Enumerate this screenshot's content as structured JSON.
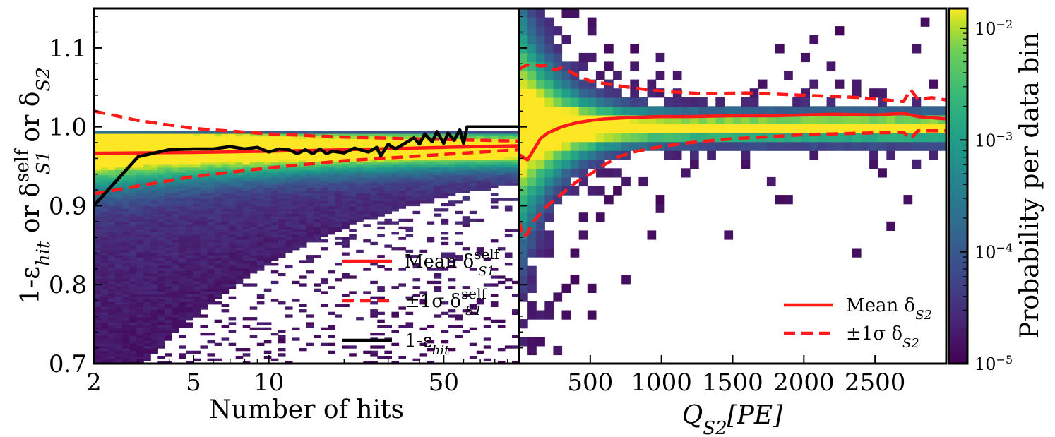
{
  "chart_data": [
    {
      "type": "heatmap",
      "title": "",
      "xlabel": "Number of hits",
      "ylabel": "1-ε_hit or δ_S1^self or δ_S2",
      "x_scale": "log",
      "xlim": [
        2,
        100
      ],
      "ylim": [
        0.7,
        1.15
      ],
      "x_ticks": [
        2,
        5,
        10,
        50
      ],
      "x_tick_labels": [
        "2",
        "5",
        "10",
        "50"
      ],
      "y_ticks": [
        0.7,
        0.8,
        0.9,
        1.0,
        1.1
      ],
      "y_tick_labels": [
        "0.7",
        "0.8",
        "0.9",
        "1.0",
        "1.1"
      ],
      "series": [
        {
          "name": "Mean δ_S1^self",
          "style": "solid",
          "color": "#ff1a1a",
          "x": [
            2,
            5,
            10,
            20,
            50,
            100
          ],
          "y": [
            0.9665,
            0.9675,
            0.969,
            0.971,
            0.974,
            0.976
          ]
        },
        {
          "name": "+1σ δ_S1^self",
          "style": "dashed",
          "color": "#ff1a1a",
          "x": [
            2,
            3,
            5,
            10,
            20,
            50,
            100
          ],
          "y": [
            1.02,
            1.008,
            0.998,
            0.991,
            0.987,
            0.984,
            0.982
          ]
        },
        {
          "name": "-1σ δ_S1^self",
          "style": "dashed",
          "color": "#ff1a1a",
          "x": [
            2,
            3,
            5,
            10,
            20,
            50,
            100
          ],
          "y": [
            0.915,
            0.925,
            0.937,
            0.948,
            0.957,
            0.965,
            0.971
          ]
        },
        {
          "name": "1-ε_hit",
          "style": "solid",
          "color": "#000000",
          "x": [
            2,
            3,
            4,
            5,
            6,
            7,
            8,
            9,
            10,
            11,
            12,
            13,
            14,
            15,
            16,
            17,
            18,
            20,
            22,
            25,
            27,
            28,
            30,
            32,
            35,
            38,
            40,
            42,
            45,
            47,
            50,
            52,
            55,
            58,
            60,
            62,
            65,
            100
          ],
          "y": [
            0.9,
            0.962,
            0.971,
            0.972,
            0.972,
            0.975,
            0.972,
            0.974,
            0.968,
            0.972,
            0.971,
            0.966,
            0.971,
            0.966,
            0.972,
            0.966,
            0.969,
            0.967,
            0.973,
            0.968,
            0.974,
            0.963,
            0.978,
            0.972,
            0.979,
            0.986,
            0.978,
            0.991,
            0.981,
            0.994,
            0.979,
            0.992,
            0.983,
            0.996,
            0.979,
            1.0,
            1.0,
            1.0
          ]
        }
      ],
      "legend": {
        "position": "lower-right",
        "entries": [
          {
            "label_main": "Mean δ",
            "label_sub": "S1",
            "label_sup": "self",
            "style": "solid",
            "color": "#ff1a1a"
          },
          {
            "label_main": "±1σ δ",
            "label_sub": "S1",
            "label_sup": "self",
            "style": "dashed",
            "color": "#ff1a1a"
          },
          {
            "label_main": "1-ε",
            "label_sub": "hit",
            "label_sup": "",
            "style": "solid",
            "color": "#000000"
          }
        ]
      },
      "heatmap_description": "2D histogram of δ_S1^self vs number of hits, density concentrated near 0.97, spreading downward at low hit counts"
    },
    {
      "type": "heatmap",
      "title": "",
      "xlabel": "Q_S2[PE]",
      "ylabel": "",
      "x_scale": "linear",
      "xlim": [
        0,
        3000
      ],
      "ylim": [
        0.7,
        1.15
      ],
      "x_ticks": [
        500,
        1000,
        1500,
        2000,
        2500
      ],
      "x_tick_labels": [
        "500",
        "1000",
        "1500",
        "2000",
        "2500"
      ],
      "series": [
        {
          "name": "Mean δ_S2",
          "style": "solid",
          "color": "#ff1a1a",
          "x": [
            0,
            60,
            100,
            150,
            200,
            300,
            400,
            500,
            600,
            800,
            1000,
            1200,
            1500,
            1800,
            2000,
            2200,
            2500,
            2700,
            2800,
            3000
          ],
          "y": [
            0.965,
            0.958,
            0.97,
            0.985,
            0.992,
            1.0,
            1.005,
            1.008,
            1.01,
            1.012,
            1.013,
            1.013,
            1.014,
            1.014,
            1.015,
            1.016,
            1.015,
            1.017,
            1.013,
            1.01
          ]
        },
        {
          "name": "+1σ δ_S2",
          "style": "dashed",
          "color": "#ff1a1a",
          "x": [
            0,
            50,
            100,
            150,
            200,
            250,
            300,
            400,
            500,
            700,
            900,
            1100,
            1300,
            1600,
            2000,
            2400,
            2700,
            2750,
            2800,
            2900,
            3000
          ],
          "y": [
            1.073,
            1.078,
            1.079,
            1.077,
            1.078,
            1.072,
            1.075,
            1.066,
            1.058,
            1.052,
            1.047,
            1.044,
            1.042,
            1.043,
            1.04,
            1.037,
            1.032,
            1.047,
            1.035,
            1.037,
            1.034
          ]
        },
        {
          "name": "-1σ δ_S2",
          "style": "dashed",
          "color": "#ff1a1a",
          "x": [
            0,
            30,
            60,
            100,
            150,
            200,
            300,
            400,
            500,
            600,
            700,
            800,
            1000,
            1200,
            1500,
            1800,
            2000,
            2400,
            2700,
            2750,
            2800,
            3000
          ],
          "y": [
            0.88,
            0.86,
            0.865,
            0.88,
            0.89,
            0.9,
            0.915,
            0.93,
            0.94,
            0.952,
            0.962,
            0.968,
            0.975,
            0.98,
            0.985,
            0.988,
            0.99,
            0.992,
            0.993,
            0.985,
            0.995,
            0.995
          ]
        }
      ],
      "legend": {
        "position": "lower-right",
        "entries": [
          {
            "label_main": "Mean δ",
            "label_sub": "S2",
            "label_sup": "",
            "style": "solid",
            "color": "#ff1a1a"
          },
          {
            "label_main": "±1σ δ",
            "label_sub": "S2",
            "label_sup": "",
            "style": "dashed",
            "color": "#ff1a1a"
          }
        ]
      },
      "heatmap_description": "2D histogram of δ_S2 vs Q_S2, density concentrated at 0.98-1.02, sparse bins at low charge spreading"
    }
  ],
  "colorbar": {
    "label": "Probability per data bin",
    "scale": "log",
    "range": [
      1e-05,
      0.015
    ],
    "ticks": [
      {
        "value": 1e-05,
        "base": "10",
        "exp": "−5"
      },
      {
        "value": 0.0001,
        "base": "10",
        "exp": "−4"
      },
      {
        "value": 0.001,
        "base": "10",
        "exp": "−3"
      },
      {
        "value": 0.01,
        "base": "10",
        "exp": "−2"
      }
    ],
    "colormap": "viridis"
  },
  "ylabel_parts": {
    "p1": "1-ε",
    "p1_sub": "hit",
    "p2": " or δ",
    "p2_sup": "self",
    "p2_sub": "S1",
    "p3": " or δ",
    "p3_sub": "S2"
  },
  "xlabel_right_parts": {
    "main": "Q",
    "sub": "S2",
    "rest": "[PE]"
  }
}
